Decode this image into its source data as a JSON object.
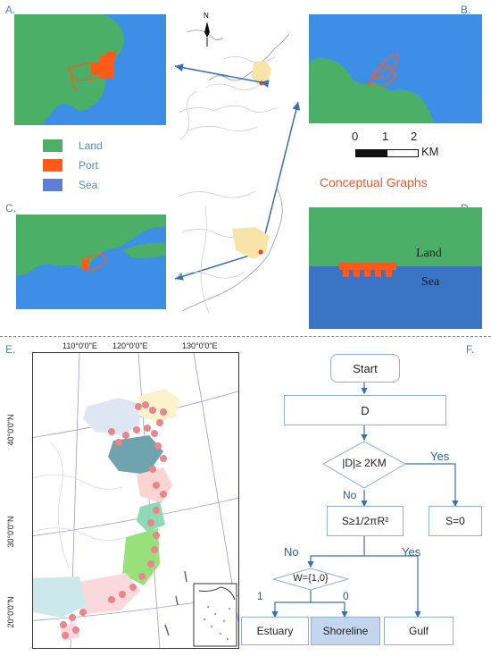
{
  "panels": {
    "a": "A.",
    "b": "B.",
    "c": "C.",
    "d": "D.",
    "e": "E.",
    "f": "F."
  },
  "legend": {
    "items": [
      {
        "label": "Land",
        "color": "#4caf68"
      },
      {
        "label": "Port",
        "color": "#ff5a1a"
      },
      {
        "label": "Sea",
        "color": "#5f7fd6"
      }
    ]
  },
  "scale": {
    "ticks": [
      "0",
      "1",
      "2"
    ],
    "unit": "KM"
  },
  "conceptual": {
    "title": "Conceptual Graphs",
    "land": "Land",
    "sea": "Sea"
  },
  "north": "N",
  "map_e": {
    "lon_labels": [
      "110°0'0\"E",
      "120°0'0\"E",
      "130°0'0\"E"
    ],
    "lat_labels": [
      "40°0'0\"N",
      "30°0'0\"N",
      "20°0'0\"N"
    ]
  },
  "flowchart": {
    "start": "Start",
    "d": "D",
    "cond1": "|D|≥ 2KM",
    "yes1": "Yes",
    "no1": "No",
    "cond2": "S≥1/2πR²",
    "s0": "S=0",
    "no2": "No",
    "yes2": "Yes",
    "cond3": "W={1,0}",
    "one": "1",
    "zero": "0",
    "estuary": "Estuary",
    "shoreline": "Shoreline",
    "gulf": "Gulf"
  },
  "colors": {
    "land": "#4caf68",
    "sea": "#3d8fe6",
    "port": "#ff5a1a",
    "arrow": "#3a6fb0"
  }
}
